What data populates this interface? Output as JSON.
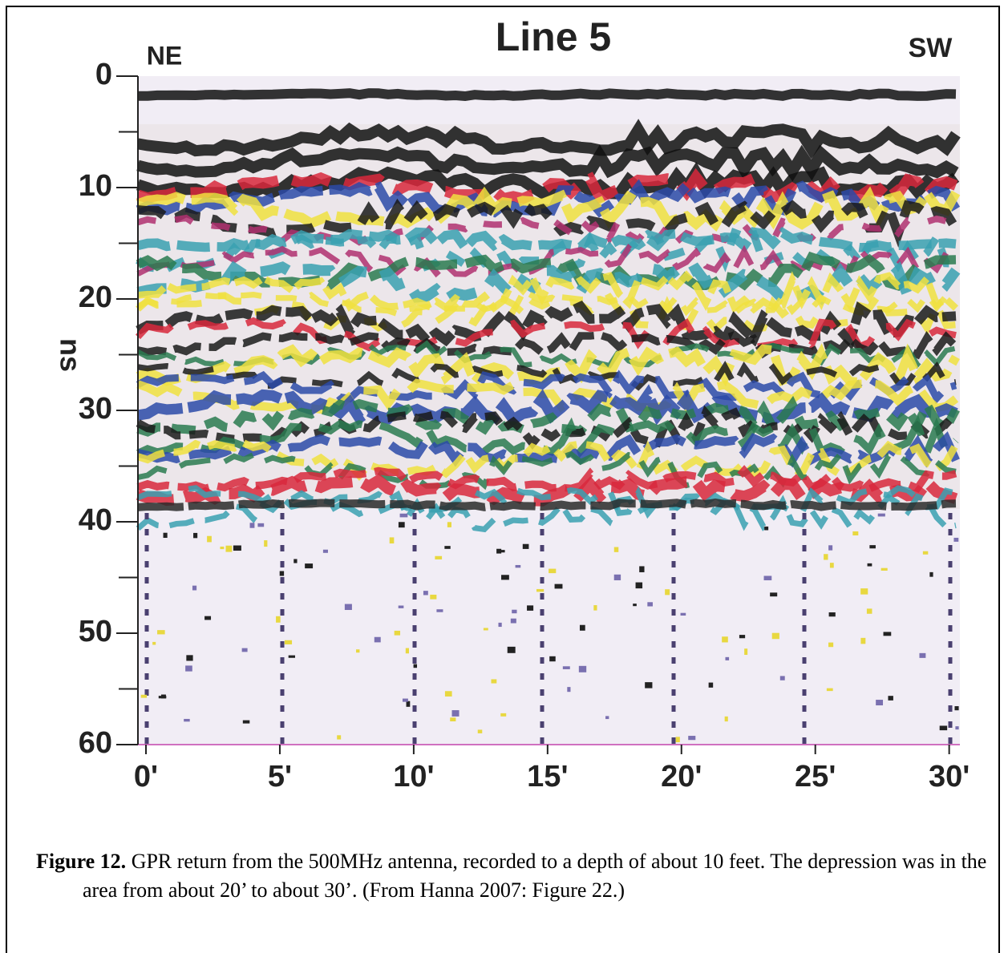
{
  "chart_data": {
    "type": "radargram",
    "title": "Line 5",
    "left_label": "NE",
    "right_label": "SW",
    "y_label": "ns",
    "ylim": [
      0,
      60
    ],
    "yticks": [
      0,
      10,
      20,
      30,
      40,
      50,
      60
    ],
    "minor_yticks": [
      5,
      15,
      25,
      35,
      45,
      55
    ],
    "y_inverted": true,
    "xlim": [
      -0.3,
      30.4
    ],
    "xticks": [
      {
        "value": 0,
        "label": "0'"
      },
      {
        "value": 5,
        "label": "5'"
      },
      {
        "value": 10,
        "label": "10'"
      },
      {
        "value": 15,
        "label": "15'"
      },
      {
        "value": 20,
        "label": "20'"
      },
      {
        "value": 25,
        "label": "25'"
      },
      {
        "value": 30,
        "label": "30'"
      }
    ]
  },
  "caption": {
    "label": "Figure 12.",
    "text": "GPR return from the 500MHz antenna, recorded to a depth of about 10 feet. The depression was in the area from about 20’ to about 30’. (From Hanna 2007: Figure 22.)"
  }
}
